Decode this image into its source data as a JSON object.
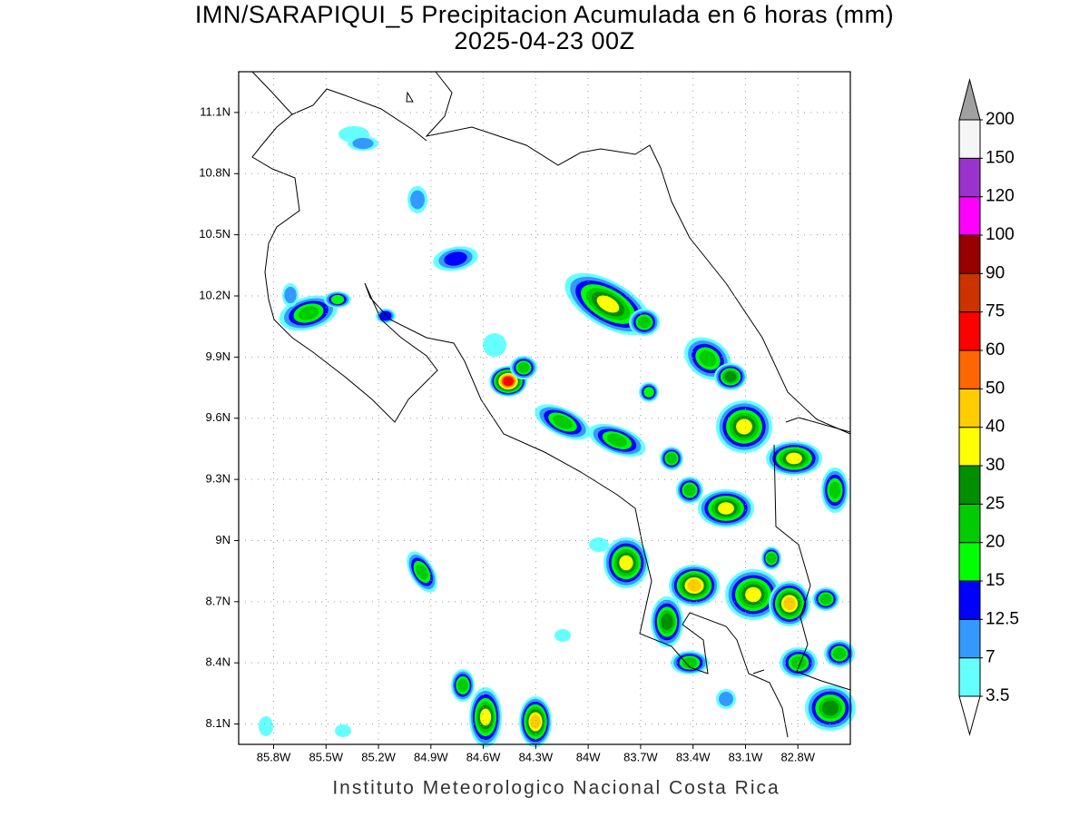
{
  "header": {
    "title": "IMN/SARAPIQUI_5 Precipitacion Acumulada en 6 horas (mm)",
    "subtitle": "2025-04-23 00Z"
  },
  "map": {
    "lonlim": [
      -86.0,
      -82.5
    ],
    "latlim": [
      8.0,
      11.3
    ],
    "lon_ticks": [
      {
        "value": -85.8,
        "label": "85.8W"
      },
      {
        "value": -85.5,
        "label": "85.5W"
      },
      {
        "value": -85.2,
        "label": "85.2W"
      },
      {
        "value": -84.9,
        "label": "84.9W"
      },
      {
        "value": -84.6,
        "label": "84.6W"
      },
      {
        "value": -84.3,
        "label": "84.3W"
      },
      {
        "value": -84.0,
        "label": "84W"
      },
      {
        "value": -83.7,
        "label": "83.7W"
      },
      {
        "value": -83.4,
        "label": "83.4W"
      },
      {
        "value": -83.1,
        "label": "83.1W"
      },
      {
        "value": -82.8,
        "label": "82.8W"
      }
    ],
    "lat_ticks": [
      {
        "value": 8.1,
        "label": "8.1N"
      },
      {
        "value": 8.4,
        "label": "8.4N"
      },
      {
        "value": 8.7,
        "label": "8.7N"
      },
      {
        "value": 9.0,
        "label": "9N"
      },
      {
        "value": 9.3,
        "label": "9.3N"
      },
      {
        "value": 9.6,
        "label": "9.6N"
      },
      {
        "value": 9.9,
        "label": "9.9N"
      },
      {
        "value": 10.2,
        "label": "10.2N"
      },
      {
        "value": 10.5,
        "label": "10.5N"
      },
      {
        "value": 10.8,
        "label": "10.8N"
      },
      {
        "value": 11.1,
        "label": "11.1N"
      }
    ],
    "grid": true
  },
  "colorbar": {
    "levels": [
      3.5,
      7,
      12.5,
      15,
      20,
      25,
      30,
      40,
      50,
      60,
      75,
      90,
      100,
      120,
      150,
      200
    ],
    "colors": [
      "#ffffff",
      "#66ffff",
      "#3399ff",
      "#0000ff",
      "#00ff00",
      "#00cc00",
      "#008f00",
      "#ffff00",
      "#ffcc00",
      "#ff6600",
      "#ff0000",
      "#cc3300",
      "#990000",
      "#ff00ff",
      "#9933cc",
      "#f5f5f5",
      "#a0a0a0"
    ]
  },
  "footer": "Instituto Meteorologico Nacional Costa Rica"
}
